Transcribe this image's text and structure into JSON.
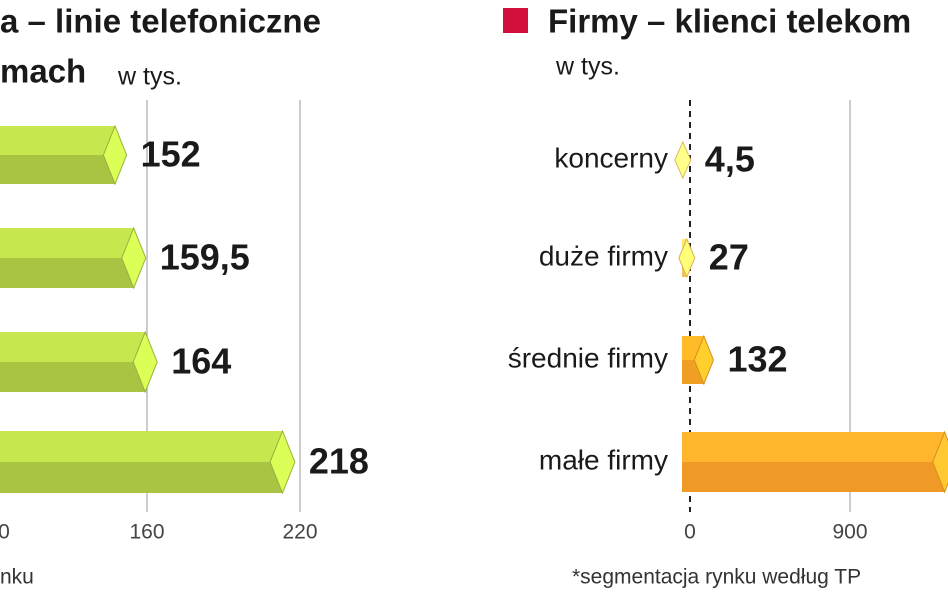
{
  "chart_data": [
    {
      "type": "bar",
      "orientation": "horizontal",
      "title": "a – linie telefoniczne",
      "subtitle": "mach",
      "unit": "w tys.",
      "footnote": "nku",
      "categories": [
        null,
        null,
        null,
        null
      ],
      "values": [
        152,
        159.5,
        164,
        218
      ],
      "value_labels": [
        "152",
        "159,5",
        "164",
        "218"
      ],
      "color": "#a9c443",
      "xlim": [
        60,
        230
      ],
      "xticks": [
        {
          "value": 100,
          "label": "0"
        },
        160,
        220
      ],
      "grid": true
    },
    {
      "type": "bar",
      "orientation": "horizontal",
      "title": "Firmy – klienci telekom",
      "unit": "w tys.",
      "footnote": "*segmentacja rynku według TP",
      "categories": [
        "koncerny",
        "duże firmy",
        "średnie firmy",
        "małe firmy"
      ],
      "values": [
        4.5,
        27,
        132,
        1500
      ],
      "value_labels": [
        "4,5",
        "27",
        "132",
        null
      ],
      "colors": [
        "#f6cf6a",
        "#f4c35c",
        "#ef9f22",
        "#ef9a26"
      ],
      "legend_color": "#d0103a",
      "xlim": [
        0,
        1451
      ],
      "xticks": [
        0,
        900
      ],
      "grid": true
    }
  ]
}
